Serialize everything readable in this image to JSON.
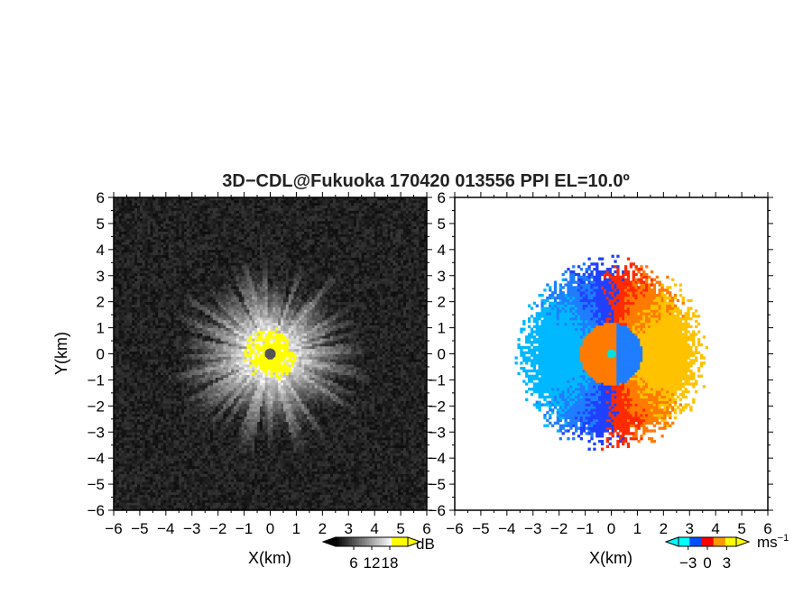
{
  "title": "3D−CDL@Fukuoka 170420 013556 PPI EL=10.0º",
  "chart_data": [
    {
      "type": "heatmap",
      "name": "reflectivity-ppi",
      "xlabel": "X(km)",
      "ylabel": "Y(km)",
      "xlim": [
        -6,
        6
      ],
      "ylim": [
        -6,
        6
      ],
      "xticks": [
        "−6",
        "−5",
        "−4",
        "−3",
        "−2",
        "−1",
        "0",
        "1",
        "2",
        "3",
        "4",
        "5",
        "6"
      ],
      "yticks": [
        "6",
        "5",
        "4",
        "3",
        "2",
        "1",
        "0",
        "−1",
        "−2",
        "−3",
        "−4",
        "−5",
        "−6"
      ],
      "colorbar": {
        "unit": "dB",
        "ticks": [
          "6",
          "12",
          "18"
        ],
        "tick_values": [
          6,
          12,
          18
        ],
        "range": [
          0,
          24
        ],
        "colors": [
          "#000000",
          "#ffffff",
          "#ffff00"
        ]
      },
      "field": {
        "description_values": "echo strength radially decreasing from radar at origin; saturated (>18 dB) within ~1 km",
        "center": [
          0,
          0
        ],
        "saturated_radius_km": 1.0,
        "echo_radius_km": 3.2,
        "noise_level_db": 3,
        "blind_zone_radius_km": 0.2
      }
    },
    {
      "type": "heatmap",
      "name": "doppler-velocity-ppi",
      "xlabel": "X(km)",
      "xlim": [
        -6,
        6
      ],
      "ylim": [
        -6,
        6
      ],
      "xticks": [
        "−6",
        "−5",
        "−4",
        "−3",
        "−2",
        "−1",
        "0",
        "1",
        "2",
        "3",
        "4",
        "5",
        "6"
      ],
      "yticks": [
        "6",
        "5",
        "4",
        "3",
        "2",
        "1",
        "0",
        "−1",
        "−2",
        "−3",
        "−4",
        "−5",
        "−6"
      ],
      "colorbar": {
        "unit": "ms",
        "unit_exponent": "−1",
        "ticks": [
          "−3",
          "0",
          "3"
        ],
        "tick_values": [
          -3,
          0,
          3
        ],
        "range": [
          -4.5,
          4.5
        ],
        "colors": [
          "#00ffff",
          "#0050ff",
          "#ff0000",
          "#ff9900",
          "#ffff00"
        ]
      },
      "field": {
        "description_values": "radial velocity: negative (toward) on west side, positive (away) on east side; inner reversed dipole within ~1.2 km",
        "outer_radius_km": 3.3,
        "inner_radius_km": 1.2,
        "outer_west_velocity": -3,
        "outer_east_velocity": 3,
        "inner_east_velocity": -3,
        "inner_west_velocity": 2
      }
    }
  ]
}
